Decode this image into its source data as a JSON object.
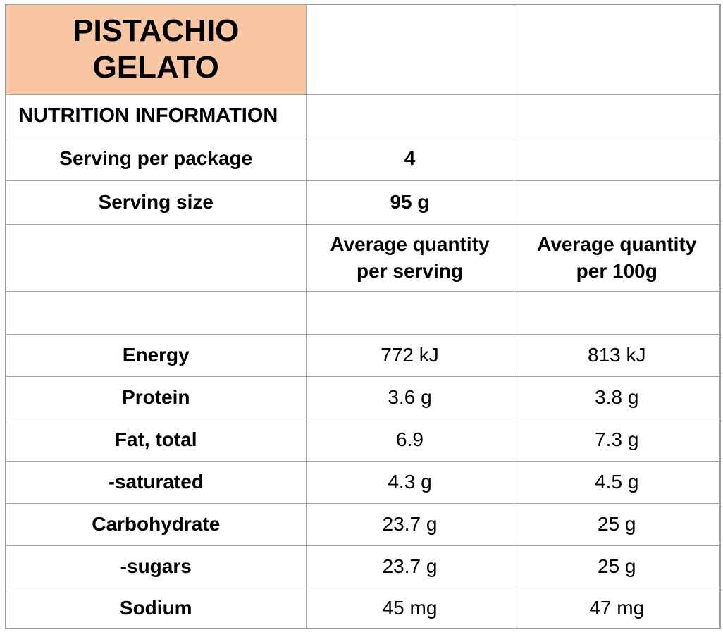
{
  "product": {
    "title": "PISTACHIO GELATO",
    "header_bg_color": "#f9c6a4",
    "grid_line_color": "#a2a2a2"
  },
  "nutrition": {
    "section_title": "NUTRITION INFORMATION",
    "serving_info": [
      {
        "label": "Serving per package",
        "value": "4"
      },
      {
        "label": "Serving size",
        "value": "95 g"
      }
    ],
    "column_headers": {
      "per_serving": "Average quantity per serving",
      "per_100g": "Average quantity per 100g"
    },
    "nutrients": [
      {
        "label": "Energy",
        "per_serving": "772 kJ",
        "per_100g": "813 kJ"
      },
      {
        "label": "Protein",
        "per_serving": "3.6 g",
        "per_100g": "3.8 g"
      },
      {
        "label": "Fat, total",
        "per_serving": "6.9",
        "per_100g": "7.3 g"
      },
      {
        "label": "-saturated",
        "per_serving": "4.3 g",
        "per_100g": "4.5 g"
      },
      {
        "label": "Carbohydrate",
        "per_serving": "23.7 g",
        "per_100g": "25 g"
      },
      {
        "label": "-sugars",
        "per_serving": "23.7 g",
        "per_100g": "25 g"
      },
      {
        "label": "Sodium",
        "per_serving": "45 mg",
        "per_100g": "47 mg"
      }
    ]
  }
}
